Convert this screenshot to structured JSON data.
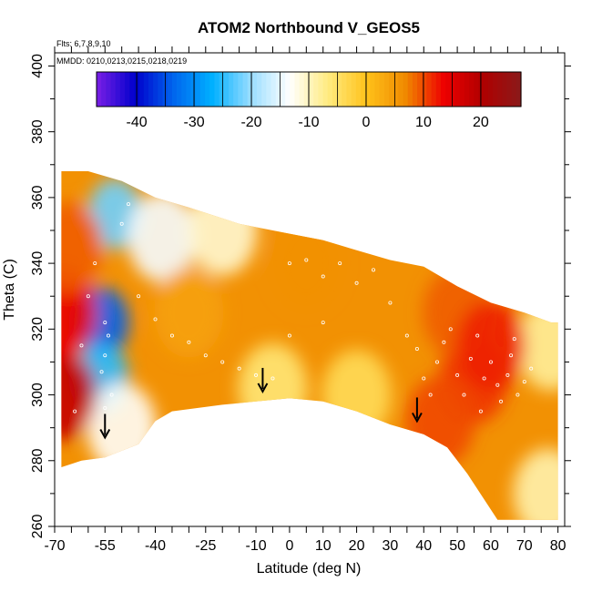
{
  "chart_data": {
    "type": "heatmap",
    "title": "ATOM2 Northbound V_GEOS5",
    "subtitle_flights": "Flts: 6,7,8,9,10",
    "subtitle_dates": "MMDD: 0210,0213,0215,0218,0219",
    "xlabel": "Latitude (deg N)",
    "ylabel": "Theta (C)",
    "xlim": [
      -70,
      82
    ],
    "ylim": [
      260,
      404
    ],
    "x_ticks": [
      -70,
      -55,
      -40,
      -25,
      -10,
      0,
      10,
      20,
      30,
      40,
      50,
      60,
      70,
      80
    ],
    "x_minor_ticks": [
      -65,
      -60,
      -50,
      -45,
      -35,
      -30,
      -20,
      -15,
      -5,
      5,
      15,
      25,
      35,
      45,
      55,
      65,
      75
    ],
    "y_ticks": [
      260,
      280,
      300,
      320,
      340,
      360,
      380,
      400
    ],
    "colorbar": {
      "min": -47,
      "max": 27,
      "ticks": [
        -40,
        -30,
        -20,
        -10,
        0,
        10,
        20
      ],
      "colors": [
        "#7a1fe6",
        "#0000cc",
        "#0066ee",
        "#00b0ff",
        "#99ddff",
        "#ffffff",
        "#ffeb80",
        "#ffc21a",
        "#f08a00",
        "#ee0000",
        "#b00000",
        "#8a1a1a"
      ]
    },
    "domain": {
      "top": [
        [
          -68,
          368
        ],
        [
          -60,
          368
        ],
        [
          -50,
          365
        ],
        [
          -40,
          360
        ],
        [
          -30,
          357
        ],
        [
          -15,
          352
        ],
        [
          0,
          349
        ],
        [
          10,
          347
        ],
        [
          20,
          344
        ],
        [
          30,
          341
        ],
        [
          40,
          339
        ],
        [
          50,
          333
        ],
        [
          60,
          328
        ],
        [
          70,
          325
        ],
        [
          78,
          322
        ],
        [
          80,
          322
        ]
      ],
      "bottom": [
        [
          80,
          262
        ],
        [
          72,
          262
        ],
        [
          62,
          262
        ],
        [
          53,
          276
        ],
        [
          47,
          284
        ],
        [
          40,
          288
        ],
        [
          30,
          291
        ],
        [
          20,
          295
        ],
        [
          10,
          298
        ],
        [
          0,
          299
        ],
        [
          -10,
          298
        ],
        [
          -20,
          297
        ],
        [
          -35,
          295
        ],
        [
          -40,
          292
        ],
        [
          -45,
          285
        ],
        [
          -50,
          283
        ],
        [
          -55,
          281
        ],
        [
          -62,
          280
        ],
        [
          -68,
          278
        ]
      ]
    },
    "field_anomalies": [
      {
        "lat": -56,
        "theta": 322,
        "value": -34
      },
      {
        "lat": -56,
        "theta": 305,
        "value": -25
      },
      {
        "lat": -52,
        "theta": 355,
        "value": -22
      },
      {
        "lat": -38,
        "theta": 348,
        "value": -14
      },
      {
        "lat": -20,
        "theta": 350,
        "value": -11
      },
      {
        "lat": -50,
        "theta": 290,
        "value": -13
      },
      {
        "lat": -5,
        "theta": 302,
        "value": -6
      },
      {
        "lat": 20,
        "theta": 300,
        "value": -4
      },
      {
        "lat": 77,
        "theta": 270,
        "value": -9
      },
      {
        "lat": 78,
        "theta": 315,
        "value": -8
      },
      {
        "lat": -68,
        "theta": 300,
        "value": 18
      },
      {
        "lat": -68,
        "theta": 325,
        "value": 14
      },
      {
        "lat": -66,
        "theta": 345,
        "value": 9
      },
      {
        "lat": 55,
        "theta": 305,
        "value": 11
      },
      {
        "lat": 45,
        "theta": 292,
        "value": 10
      },
      {
        "lat": 50,
        "theta": 325,
        "value": 9
      },
      {
        "lat": 5,
        "theta": 340,
        "value": 6
      },
      {
        "lat": -30,
        "theta": 325,
        "value": 4
      },
      {
        "lat": 60,
        "theta": 315,
        "value": 12
      }
    ],
    "flight_points": [
      [
        -55,
        322
      ],
      [
        -54,
        318
      ],
      [
        -55,
        312
      ],
      [
        -56,
        307
      ],
      [
        -53,
        300
      ],
      [
        -55,
        296
      ],
      [
        -45,
        330
      ],
      [
        -40,
        323
      ],
      [
        -35,
        318
      ],
      [
        -30,
        316
      ],
      [
        -25,
        312
      ],
      [
        -20,
        310
      ],
      [
        -15,
        308
      ],
      [
        -10,
        306
      ],
      [
        -5,
        305
      ],
      [
        0,
        318
      ],
      [
        0,
        340
      ],
      [
        5,
        341
      ],
      [
        10,
        336
      ],
      [
        10,
        322
      ],
      [
        15,
        340
      ],
      [
        20,
        334
      ],
      [
        25,
        338
      ],
      [
        30,
        328
      ],
      [
        35,
        318
      ],
      [
        38,
        314
      ],
      [
        40,
        305
      ],
      [
        42,
        300
      ],
      [
        44,
        310
      ],
      [
        46,
        316
      ],
      [
        48,
        320
      ],
      [
        50,
        306
      ],
      [
        52,
        300
      ],
      [
        54,
        311
      ],
      [
        56,
        318
      ],
      [
        57,
        295
      ],
      [
        58,
        305
      ],
      [
        60,
        310
      ],
      [
        62,
        303
      ],
      [
        63,
        298
      ],
      [
        65,
        306
      ],
      [
        66,
        312
      ],
      [
        67,
        317
      ],
      [
        68,
        300
      ],
      [
        70,
        304
      ],
      [
        72,
        308
      ],
      [
        -60,
        330
      ],
      [
        -58,
        340
      ],
      [
        -62,
        315
      ],
      [
        -64,
        295
      ],
      [
        -50,
        352
      ],
      [
        -48,
        358
      ]
    ],
    "annotations": [
      {
        "type": "arrow-down",
        "lat": -55,
        "theta": 287
      },
      {
        "type": "arrow-down",
        "lat": -8,
        "theta": 301
      },
      {
        "type": "arrow-down",
        "lat": 38,
        "theta": 292
      }
    ]
  }
}
